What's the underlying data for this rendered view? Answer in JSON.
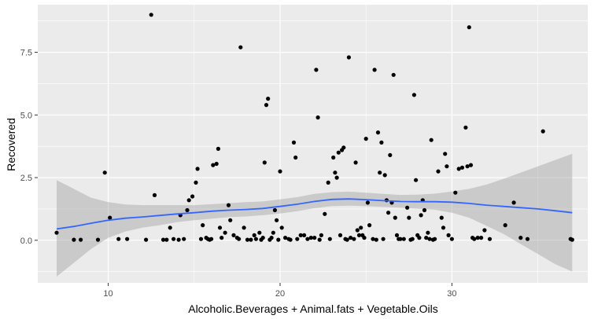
{
  "chart_data": {
    "type": "scatter",
    "xlabel": "Alcoholic.Beverages + Animal.fats + Vegetable.Oils",
    "ylabel": "Recovered",
    "xlim": [
      5.9,
      37.9
    ],
    "ylim": [
      -1.7,
      9.4
    ],
    "x_ticks": [
      10,
      20,
      30
    ],
    "x_tick_labels": [
      "10",
      "20",
      "30"
    ],
    "y_ticks": [
      0.0,
      2.5,
      5.0,
      7.5
    ],
    "y_tick_labels": [
      "0.0",
      "2.5",
      "5.0",
      "7.5"
    ],
    "grid": true,
    "legend": "none",
    "colors": {
      "panel": "#ebebeb",
      "grid": "#ffffff",
      "point": "#000000",
      "smooth": "#3366ff",
      "ribbon": "#999999"
    },
    "points": [
      [
        7.0,
        0.3
      ],
      [
        8.0,
        0.02
      ],
      [
        8.4,
        0.02
      ],
      [
        9.4,
        0.02
      ],
      [
        9.8,
        2.7
      ],
      [
        10.1,
        0.9
      ],
      [
        10.6,
        0.05
      ],
      [
        11.1,
        0.05
      ],
      [
        12.2,
        0.02
      ],
      [
        12.5,
        9.0
      ],
      [
        12.7,
        1.8
      ],
      [
        13.2,
        0.02
      ],
      [
        13.4,
        0.02
      ],
      [
        13.6,
        0.5
      ],
      [
        13.8,
        0.05
      ],
      [
        14.1,
        0.02
      ],
      [
        14.2,
        1.0
      ],
      [
        14.4,
        0.05
      ],
      [
        14.6,
        1.2
      ],
      [
        14.7,
        1.6
      ],
      [
        14.9,
        1.75
      ],
      [
        15.1,
        2.3
      ],
      [
        15.2,
        2.85
      ],
      [
        15.4,
        0.05
      ],
      [
        15.5,
        0.6
      ],
      [
        15.7,
        0.1
      ],
      [
        15.8,
        0.05
      ],
      [
        15.9,
        0.02
      ],
      [
        16.0,
        0.05
      ],
      [
        16.1,
        3.0
      ],
      [
        16.3,
        3.05
      ],
      [
        16.4,
        3.65
      ],
      [
        16.5,
        0.5
      ],
      [
        16.6,
        0.1
      ],
      [
        16.8,
        0.3
      ],
      [
        17.0,
        1.4
      ],
      [
        17.1,
        0.8
      ],
      [
        17.3,
        0.2
      ],
      [
        17.5,
        0.1
      ],
      [
        17.6,
        0.05
      ],
      [
        17.7,
        7.7
      ],
      [
        17.9,
        0.5
      ],
      [
        18.1,
        0.02
      ],
      [
        18.3,
        0.02
      ],
      [
        18.5,
        0.2
      ],
      [
        18.6,
        0.05
      ],
      [
        18.8,
        0.3
      ],
      [
        18.9,
        0.02
      ],
      [
        19.0,
        0.1
      ],
      [
        19.1,
        3.1
      ],
      [
        19.2,
        5.4
      ],
      [
        19.3,
        5.65
      ],
      [
        19.4,
        0.02
      ],
      [
        19.5,
        0.1
      ],
      [
        19.6,
        0.3
      ],
      [
        19.7,
        1.2
      ],
      [
        19.8,
        0.8
      ],
      [
        19.9,
        0.02
      ],
      [
        20.0,
        2.75
      ],
      [
        20.1,
        0.5
      ],
      [
        20.3,
        0.1
      ],
      [
        20.5,
        0.05
      ],
      [
        20.6,
        0.02
      ],
      [
        20.8,
        3.9
      ],
      [
        20.9,
        3.3
      ],
      [
        21.0,
        0.05
      ],
      [
        21.2,
        0.2
      ],
      [
        21.4,
        0.2
      ],
      [
        21.6,
        0.05
      ],
      [
        21.8,
        0.1
      ],
      [
        22.0,
        0.1
      ],
      [
        22.1,
        6.8
      ],
      [
        22.2,
        4.9
      ],
      [
        22.3,
        0.02
      ],
      [
        22.4,
        0.2
      ],
      [
        22.6,
        1.05
      ],
      [
        22.8,
        2.3
      ],
      [
        22.9,
        0.05
      ],
      [
        23.1,
        3.3
      ],
      [
        23.2,
        2.7
      ],
      [
        23.3,
        2.5
      ],
      [
        23.4,
        3.5
      ],
      [
        23.5,
        0.2
      ],
      [
        23.6,
        3.6
      ],
      [
        23.7,
        3.7
      ],
      [
        23.8,
        0.05
      ],
      [
        23.9,
        0.02
      ],
      [
        24.0,
        7.3
      ],
      [
        24.1,
        0.1
      ],
      [
        24.3,
        0.05
      ],
      [
        24.4,
        3.1
      ],
      [
        24.5,
        0.4
      ],
      [
        24.6,
        0.2
      ],
      [
        24.7,
        0.5
      ],
      [
        24.8,
        0.2
      ],
      [
        24.9,
        0.1
      ],
      [
        25.0,
        4.05
      ],
      [
        25.1,
        1.5
      ],
      [
        25.2,
        0.6
      ],
      [
        25.4,
        0.05
      ],
      [
        25.5,
        6.8
      ],
      [
        25.6,
        0.02
      ],
      [
        25.7,
        4.3
      ],
      [
        25.8,
        2.7
      ],
      [
        25.9,
        3.9
      ],
      [
        26.0,
        0.05
      ],
      [
        26.1,
        2.6
      ],
      [
        26.2,
        1.6
      ],
      [
        26.3,
        1.1
      ],
      [
        26.4,
        3.4
      ],
      [
        26.5,
        1.5
      ],
      [
        26.6,
        6.6
      ],
      [
        26.7,
        0.9
      ],
      [
        26.8,
        0.2
      ],
      [
        26.9,
        0.05
      ],
      [
        27.0,
        0.05
      ],
      [
        27.2,
        0.05
      ],
      [
        27.4,
        1.3
      ],
      [
        27.5,
        0.9
      ],
      [
        27.6,
        0.02
      ],
      [
        27.7,
        0.05
      ],
      [
        27.8,
        5.8
      ],
      [
        27.9,
        2.4
      ],
      [
        28.0,
        0.2
      ],
      [
        28.1,
        0.1
      ],
      [
        28.2,
        1.0
      ],
      [
        28.3,
        1.6
      ],
      [
        28.4,
        1.2
      ],
      [
        28.5,
        0.1
      ],
      [
        28.6,
        0.3
      ],
      [
        28.7,
        0.05
      ],
      [
        28.8,
        4.0
      ],
      [
        28.9,
        0.02
      ],
      [
        29.0,
        0.05
      ],
      [
        29.2,
        2.75
      ],
      [
        29.4,
        0.9
      ],
      [
        29.5,
        0.5
      ],
      [
        29.6,
        3.45
      ],
      [
        29.7,
        2.95
      ],
      [
        29.8,
        0.2
      ],
      [
        30.0,
        0.05
      ],
      [
        30.2,
        1.9
      ],
      [
        30.4,
        2.85
      ],
      [
        30.6,
        2.9
      ],
      [
        30.8,
        4.5
      ],
      [
        30.9,
        2.95
      ],
      [
        31.0,
        8.5
      ],
      [
        31.1,
        3.0
      ],
      [
        31.2,
        0.1
      ],
      [
        31.3,
        0.05
      ],
      [
        31.5,
        0.1
      ],
      [
        31.7,
        0.1
      ],
      [
        31.9,
        0.4
      ],
      [
        32.2,
        0.05
      ],
      [
        33.1,
        0.6
      ],
      [
        33.6,
        1.5
      ],
      [
        34.0,
        0.1
      ],
      [
        34.4,
        0.05
      ],
      [
        35.3,
        4.35
      ],
      [
        36.9,
        0.05
      ],
      [
        37.0,
        0.02
      ]
    ],
    "smooth": {
      "x": [
        7,
        8,
        9,
        10,
        11,
        12,
        13,
        14,
        15,
        16,
        17,
        18,
        19,
        20,
        21,
        22,
        23,
        24,
        25,
        26,
        27,
        28,
        29,
        30,
        31,
        32,
        33,
        34,
        35,
        36,
        37
      ],
      "y": [
        0.45,
        0.55,
        0.68,
        0.8,
        0.88,
        0.93,
        0.99,
        1.05,
        1.1,
        1.16,
        1.2,
        1.23,
        1.27,
        1.35,
        1.44,
        1.55,
        1.63,
        1.65,
        1.62,
        1.58,
        1.55,
        1.54,
        1.54,
        1.52,
        1.47,
        1.4,
        1.35,
        1.3,
        1.25,
        1.18,
        1.1
      ],
      "lower": [
        -1.45,
        -0.9,
        -0.35,
        0.1,
        0.35,
        0.5,
        0.6,
        0.72,
        0.8,
        0.86,
        0.92,
        0.95,
        1.0,
        1.07,
        1.16,
        1.28,
        1.36,
        1.38,
        1.36,
        1.33,
        1.3,
        1.26,
        1.22,
        1.1,
        0.9,
        0.58,
        0.25,
        -0.15,
        -0.55,
        -0.95,
        -1.25
      ],
      "upper": [
        2.4,
        2.05,
        1.7,
        1.52,
        1.43,
        1.4,
        1.4,
        1.4,
        1.4,
        1.44,
        1.48,
        1.52,
        1.55,
        1.63,
        1.72,
        1.85,
        1.92,
        1.94,
        1.9,
        1.85,
        1.81,
        1.82,
        1.86,
        1.95,
        2.05,
        2.22,
        2.45,
        2.7,
        2.95,
        3.2,
        3.45
      ]
    }
  }
}
